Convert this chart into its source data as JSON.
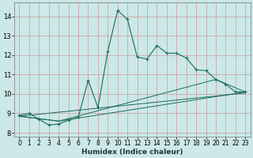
{
  "title": "",
  "xlabel": "Humidex (Indice chaleur)",
  "bg_color": "#cce8e8",
  "grid_color": "#aacccc",
  "line_color": "#1a6b5a",
  "xlim": [
    -0.5,
    23.5
  ],
  "ylim": [
    7.8,
    14.7
  ],
  "yticks": [
    8,
    9,
    10,
    11,
    12,
    13,
    14
  ],
  "xticks": [
    0,
    1,
    2,
    3,
    4,
    5,
    6,
    7,
    8,
    9,
    10,
    11,
    12,
    13,
    14,
    15,
    16,
    17,
    18,
    19,
    20,
    21,
    22,
    23
  ],
  "series1_x": [
    0,
    1,
    2,
    3,
    4,
    5,
    6,
    7,
    8,
    9,
    10,
    11,
    12,
    13,
    14,
    15,
    16,
    17,
    18,
    19,
    20,
    21,
    22,
    23
  ],
  "series1_y": [
    8.9,
    9.0,
    8.7,
    8.4,
    8.45,
    8.65,
    8.8,
    10.7,
    9.3,
    12.2,
    14.3,
    13.85,
    11.9,
    11.8,
    12.5,
    12.1,
    12.1,
    11.85,
    11.25,
    11.2,
    10.75,
    10.5,
    10.1,
    10.1
  ],
  "series2_x": [
    0,
    4,
    23
  ],
  "series2_y": [
    8.85,
    8.6,
    10.1
  ],
  "series3_x": [
    0,
    4,
    20,
    23
  ],
  "series3_y": [
    8.85,
    8.6,
    10.75,
    10.1
  ],
  "series4_x": [
    0,
    23
  ],
  "series4_y": [
    8.85,
    10.1
  ]
}
